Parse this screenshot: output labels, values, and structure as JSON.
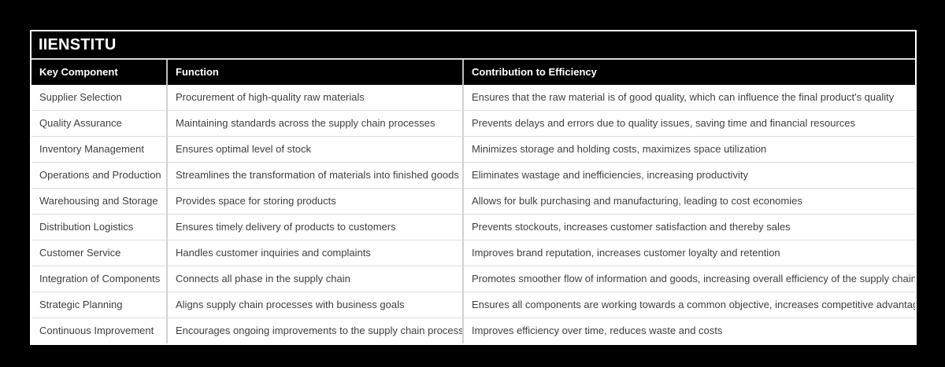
{
  "title": "IIENSTITU",
  "columns": [
    "Key Component",
    "Function",
    "Contribution to Efficiency"
  ],
  "rows": [
    [
      "Supplier Selection",
      "Procurement of high-quality raw materials",
      "Ensures that the raw material is of good quality, which can influence the final product's quality"
    ],
    [
      "Quality Assurance",
      "Maintaining standards across the supply chain processes",
      "Prevents delays and errors due to quality issues, saving time and financial resources"
    ],
    [
      "Inventory Management",
      "Ensures optimal level of stock",
      "Minimizes storage and holding costs, maximizes space utilization"
    ],
    [
      "Operations and Production",
      "Streamlines the transformation of materials into finished goods",
      "Eliminates wastage and inefficiencies, increasing productivity"
    ],
    [
      "Warehousing and Storage",
      "Provides space for storing products",
      "Allows for bulk purchasing and manufacturing, leading to cost economies"
    ],
    [
      "Distribution Logistics",
      "Ensures timely delivery of products to customers",
      "Prevents stockouts, increases customer satisfaction and thereby sales"
    ],
    [
      "Customer Service",
      "Handles customer inquiries and complaints",
      "Improves brand reputation, increases customer loyalty and retention"
    ],
    [
      "Integration of Components",
      "Connects all phase in the supply chain",
      "Promotes smoother flow of information and goods, increasing overall efficiency of the supply chain"
    ],
    [
      "Strategic Planning",
      "Aligns supply chain processes with business goals",
      "Ensures all components are working towards a common objective, increases competitive advantage"
    ],
    [
      "Continuous Improvement",
      "Encourages ongoing improvements to the supply chain process",
      "Improves efficiency over time, reduces waste and costs"
    ]
  ],
  "colors": {
    "background": "#000000",
    "table_border": "#ffffff",
    "table_background": "#ffffff",
    "header_background": "#000000",
    "header_text": "#ffffff",
    "title_divider": "#d9d9d9",
    "header_column_divider": "#bdbdbd",
    "body_text": "#3f3f3f",
    "row_divider": "#dcdcdc",
    "column_divider": "#d2d2d2"
  }
}
